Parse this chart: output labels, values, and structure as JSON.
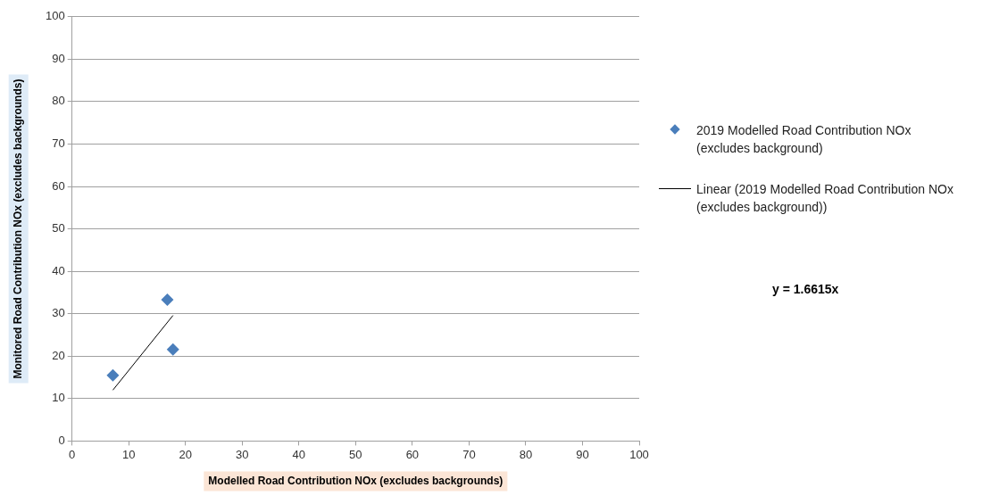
{
  "chart_data": {
    "type": "scatter",
    "xlabel": "Modelled Road Contribution NOx (excludes backgrounds)",
    "ylabel": "Monitored Road Contribution NOx (excludes backgrounds)",
    "xlim": [
      0,
      100
    ],
    "ylim": [
      0,
      100
    ],
    "xticks": [
      0,
      10,
      20,
      30,
      40,
      50,
      60,
      70,
      80,
      90,
      100
    ],
    "yticks": [
      0,
      10,
      20,
      30,
      40,
      50,
      60,
      70,
      80,
      90,
      100
    ],
    "grid": "y",
    "legend": "right",
    "marker": "diamond",
    "annotations": [
      "y = 1.6615x"
    ],
    "series": [
      {
        "name": "2019 Modelled Road Contribution NOx (excludes background)",
        "type": "scatter",
        "color": "#4a7ebb",
        "x": [
          7.2,
          16.8,
          17.8
        ],
        "values": [
          15.5,
          33.3,
          21.6
        ]
      },
      {
        "name": "Linear (2019 Modelled Road Contribution NOx (excludes background))",
        "type": "line",
        "color": "#000000",
        "x": [
          7.2,
          17.8
        ],
        "values": [
          12,
          29.6
        ],
        "marker": "none",
        "line_style": "solid"
      }
    ]
  }
}
